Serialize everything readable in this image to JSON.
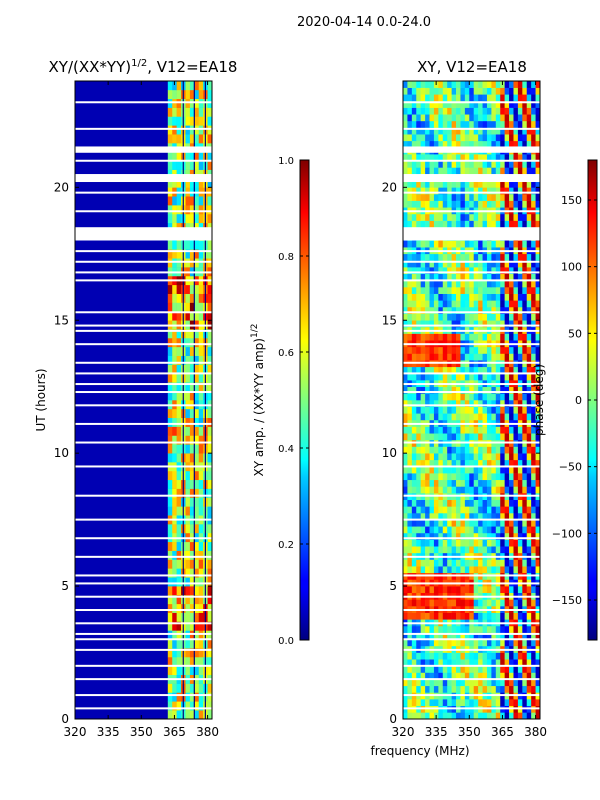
{
  "figure_title": "2020-04-14 0.0-24.0",
  "chart_data": [
    {
      "type": "heatmap",
      "title_main": "XY/(XX*YY)",
      "title_sup": "1/2",
      "title_suffix": ", V12=EA18",
      "xlabel": "",
      "ylabel": "UT (hours)",
      "xlim": [
        320,
        382
      ],
      "ylim": [
        0,
        24
      ],
      "xticks": [
        320,
        335,
        350,
        365,
        380
      ],
      "yticks": [
        0,
        5,
        10,
        15,
        20
      ],
      "colorbar": {
        "label_main": "XY amp. / (XX*YY amp)",
        "label_sup": "1/2",
        "range": [
          0.0,
          1.0
        ],
        "ticks": [
          "0.0",
          "0.2",
          "0.4",
          "0.6",
          "0.8",
          "1.0"
        ],
        "colormap": "jet"
      },
      "description_values": {
        "low_band_level": 0.05,
        "high_band_start_mhz": 362,
        "high_band_level": 0.55
      }
    },
    {
      "type": "heatmap",
      "title_main": "XY, V12=EA18",
      "xlabel": "frequency (MHz)",
      "ylabel": "",
      "xlim": [
        320,
        382
      ],
      "ylim": [
        0,
        24
      ],
      "xticks": [
        320,
        335,
        350,
        365,
        380
      ],
      "yticks": [
        0,
        5,
        10,
        15,
        20
      ],
      "colorbar": {
        "label_main": "phase (deg)",
        "range": [
          -180,
          180
        ],
        "ticks": [
          "−150",
          "−100",
          "−50",
          "0",
          "50",
          "100",
          "150"
        ],
        "colormap": "jet"
      }
    }
  ]
}
